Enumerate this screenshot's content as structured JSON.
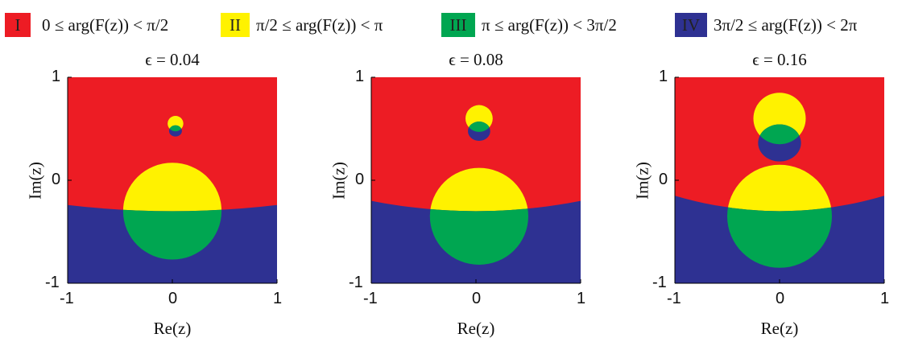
{
  "legend": {
    "items": [
      {
        "numeral": "I",
        "text": "0 ≤ arg(F(z)) < π/2",
        "color": "#ed1c24"
      },
      {
        "numeral": "II",
        "text": "π/2 ≤ arg(F(z)) < π",
        "color": "#fff200"
      },
      {
        "numeral": "III",
        "text": "π ≤ arg(F(z)) < 3π/2",
        "color": "#00a651"
      },
      {
        "numeral": "IV",
        "text": "3π/2 ≤ arg(F(z)) < 2π",
        "color": "#2e3192"
      }
    ]
  },
  "chart_data": [
    {
      "type": "heatmap",
      "title": "ϵ = 0.04",
      "xlabel": "Re(z)",
      "ylabel": "Im(z)",
      "xlim": [
        -1,
        1
      ],
      "ylim": [
        -1,
        1
      ],
      "xticks": [
        "-1",
        "0",
        "1"
      ],
      "yticks": [
        "-1",
        "0",
        "1"
      ],
      "regions": {
        "boundary_y_center": -0.3,
        "boundary_y_edge": -0.24,
        "lower_circle": {
          "center": [
            0,
            -0.3
          ],
          "radius": 0.47
        },
        "upper_circle": {
          "center": [
            0.03,
            0.55
          ],
          "radius": 0.075
        }
      }
    },
    {
      "type": "heatmap",
      "title": "ϵ = 0.08",
      "xlabel": "Re(z)",
      "ylabel": "Im(z)",
      "xlim": [
        -1,
        1
      ],
      "ylim": [
        -1,
        1
      ],
      "xticks": [
        "-1",
        "0",
        "1"
      ],
      "yticks": [
        "-1",
        "0",
        "1"
      ],
      "regions": {
        "boundary_y_center": -0.3,
        "boundary_y_edge": -0.2,
        "lower_circle": {
          "center": [
            0.03,
            -0.35
          ],
          "radius": 0.47
        },
        "upper_circle": {
          "center": [
            0.03,
            0.6
          ],
          "radius": 0.13
        }
      }
    },
    {
      "type": "heatmap",
      "title": "ϵ = 0.16",
      "xlabel": "Re(z)",
      "ylabel": "Im(z)",
      "xlim": [
        -1,
        1
      ],
      "ylim": [
        -1,
        1
      ],
      "xticks": [
        "-1",
        "0",
        "1"
      ],
      "yticks": [
        "-1",
        "0",
        "1"
      ],
      "regions": {
        "boundary_y_center": -0.3,
        "boundary_y_edge": -0.15,
        "lower_circle": {
          "center": [
            0,
            -0.35
          ],
          "radius": 0.5
        },
        "upper_circle": {
          "center": [
            0,
            0.6
          ],
          "radius": 0.25
        }
      }
    }
  ]
}
